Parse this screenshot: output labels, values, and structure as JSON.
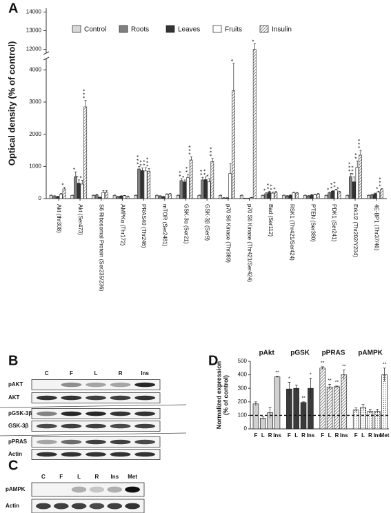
{
  "chart_data": [
    {
      "type": "bar",
      "panel_label": "A",
      "y_label": "Optical density (% of control)",
      "categories": [
        "Akt (thr308)",
        "Akt (Ser473)",
        "S6 Ribosomal Protein (Ser235/236)",
        "AMPKα (Thr172)",
        "PRAS40 (Thr246)",
        "mTOR (Ser2481)",
        "GSK-3α (Ser21)",
        "GSK-3β (Ser9)",
        "p70 S6 Kinase (Thr389)",
        "p70 S6 Kinase (Thr421/Ser424)",
        "Bad (Ser112)",
        "RSK1 (Thr421/Ser424)",
        "PTEN (Ser380)",
        "PDK1 (Ser241)",
        "Erk1/2 (Thr202/Y204)",
        "4E-BP1 (Thr37/46)"
      ],
      "series": [
        {
          "name": "Control",
          "color": "#d9d9d9",
          "pattern": "solid",
          "values": [
            100,
            100,
            100,
            100,
            100,
            100,
            100,
            100,
            100,
            100,
            100,
            100,
            100,
            100,
            100,
            100
          ],
          "errors": [
            10,
            10,
            10,
            10,
            10,
            10,
            10,
            10,
            10,
            10,
            10,
            10,
            10,
            10,
            10,
            10
          ],
          "significance": [
            null,
            null,
            null,
            null,
            null,
            null,
            null,
            null,
            null,
            null,
            null,
            null,
            null,
            null,
            null,
            null
          ]
        },
        {
          "name": "Roots",
          "color": "#808080",
          "pattern": "solid",
          "values": [
            70,
            680,
            110,
            60,
            920,
            80,
            560,
            580,
            20,
            10,
            150,
            80,
            80,
            180,
            680,
            110
          ],
          "errors": [
            20,
            150,
            20,
            10,
            80,
            10,
            60,
            80,
            10,
            5,
            30,
            15,
            15,
            20,
            100,
            20
          ],
          "significance": [
            null,
            "*",
            null,
            null,
            "***",
            null,
            "**",
            "**",
            null,
            null,
            "*",
            null,
            null,
            "*",
            "***",
            null
          ]
        },
        {
          "name": "Leaves",
          "color": "#333333",
          "pattern": "solid",
          "values": [
            60,
            480,
            40,
            80,
            870,
            60,
            520,
            590,
            20,
            10,
            200,
            100,
            110,
            230,
            520,
            150
          ],
          "errors": [
            15,
            100,
            10,
            10,
            80,
            10,
            60,
            80,
            10,
            5,
            30,
            15,
            15,
            20,
            150,
            20
          ],
          "significance": [
            null,
            "*",
            null,
            null,
            "**",
            null,
            "*",
            "**",
            null,
            null,
            "**",
            null,
            null,
            "**",
            "***",
            null
          ]
        },
        {
          "name": "Fruits",
          "color": "#ffffff",
          "pattern": "solid",
          "values": [
            130,
            450,
            190,
            90,
            860,
            130,
            650,
            520,
            780,
            30,
            170,
            180,
            120,
            270,
            970,
            200
          ],
          "errors": [
            30,
            120,
            60,
            10,
            100,
            20,
            100,
            100,
            300,
            10,
            30,
            20,
            20,
            20,
            200,
            30
          ],
          "significance": [
            null,
            "*",
            null,
            null,
            "**",
            null,
            "**",
            "*",
            null,
            null,
            "**",
            null,
            null,
            "**",
            "**",
            "*"
          ]
        },
        {
          "name": "Insulin",
          "color": "#c8c8c8",
          "pattern": "hatch",
          "values": [
            300,
            2850,
            200,
            70,
            850,
            140,
            1200,
            1150,
            3350,
            12000,
            190,
            170,
            140,
            210,
            1350,
            280
          ],
          "errors": [
            50,
            200,
            50,
            10,
            80,
            20,
            100,
            100,
            850,
            300,
            30,
            20,
            20,
            20,
            150,
            30
          ],
          "significance": [
            "*",
            "***",
            null,
            null,
            "***",
            null,
            "***",
            "***",
            "*",
            "*",
            "*",
            null,
            null,
            "*",
            "***",
            "***"
          ]
        }
      ],
      "ylim": [
        0,
        14200
      ],
      "axis_break": [
        4350,
        11800
      ],
      "yticks": [
        0,
        1000,
        2000,
        3000,
        4000,
        12000,
        13000,
        14000
      ],
      "legend": "top"
    },
    {
      "type": "bar",
      "panel_label": "D",
      "y_label": [
        "Normalized expression",
        "(% of control)"
      ],
      "series": [
        {
          "name": "pAkt",
          "color": "#d0d0d0",
          "pattern": "solid",
          "categories": [
            "F",
            "L",
            "R",
            "Ins"
          ],
          "values": [
            185,
            80,
            120,
            385
          ],
          "errors": [
            15,
            10,
            40,
            5
          ],
          "significance": [
            null,
            null,
            null,
            "**"
          ]
        },
        {
          "name": "pGSK",
          "color": "#3a3a3a",
          "pattern": "solid",
          "categories": [
            "F",
            "L",
            "R",
            "Ins"
          ],
          "values": [
            295,
            300,
            195,
            300
          ],
          "errors": [
            50,
            25,
            5,
            75
          ],
          "significance": [
            "*",
            null,
            "**",
            "*"
          ]
        },
        {
          "name": "pPRAS",
          "color": "#909090",
          "pattern": "hatch",
          "categories": [
            "F",
            "L",
            "R",
            "Ins"
          ],
          "values": [
            450,
            310,
            312,
            400
          ],
          "errors": [
            10,
            20,
            5,
            35
          ],
          "significance": [
            "**",
            "**",
            "**",
            "**"
          ]
        },
        {
          "name": "pAMPK",
          "color": "#ffffff",
          "pattern": "dots",
          "categories": [
            "F",
            "L",
            "R",
            "Ins",
            "Met"
          ],
          "values": [
            140,
            160,
            130,
            130,
            400
          ],
          "errors": [
            15,
            20,
            15,
            15,
            50
          ],
          "significance": [
            null,
            null,
            null,
            null,
            "**"
          ]
        }
      ],
      "ylim": [
        0,
        500
      ],
      "yticks": [
        0,
        100,
        200,
        300,
        400,
        500
      ],
      "reference_line": 100
    }
  ],
  "blots": [
    {
      "panel_label": "B",
      "lanes": [
        "C",
        "F",
        "L",
        "R",
        "Ins"
      ],
      "rows": [
        "pAKT",
        "AKT",
        "pGSK-3β",
        "GSK-3β",
        "pPRAS",
        "Actin"
      ]
    },
    {
      "panel_label": "C",
      "lanes": [
        "C",
        "F",
        "L",
        "R",
        "Ins",
        "Met"
      ],
      "rows": [
        "pAMPK",
        "Actin"
      ]
    }
  ]
}
